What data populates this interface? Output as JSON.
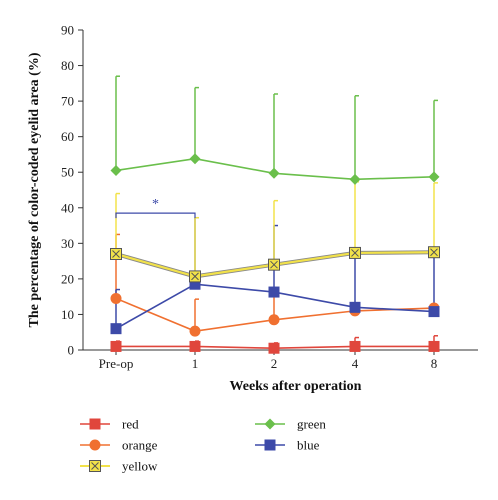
{
  "chart_data": {
    "type": "line",
    "xlabel": "Weeks after operation",
    "ylabel": "The percentage of color-coded eyelid area (%)",
    "categories": [
      "Pre-op",
      "1",
      "2",
      "4",
      "8"
    ],
    "ylim": [
      0,
      90
    ],
    "yticks": [
      0,
      10,
      20,
      30,
      40,
      50,
      60,
      70,
      80,
      90
    ],
    "grid": false,
    "legend_position": "bottom",
    "series": [
      {
        "name": "red",
        "color": "#e0463c",
        "marker": "square",
        "values": [
          1,
          1,
          0.5,
          1,
          1
        ],
        "error": [
          1.5,
          1.5,
          1.5,
          2.5,
          3
        ]
      },
      {
        "name": "orange",
        "color": "#f07030",
        "marker": "circle",
        "values": [
          14.5,
          5.3,
          8.5,
          11,
          11.8
        ],
        "error": [
          18,
          9,
          8,
          0,
          0
        ]
      },
      {
        "name": "yellow",
        "color": "#f2e24a",
        "marker": "square-x",
        "values": [
          27,
          20.7,
          24,
          27.3,
          27.5
        ],
        "error": [
          17,
          16.5,
          18,
          20,
          19.5
        ]
      },
      {
        "name": "green",
        "color": "#6abf4b",
        "marker": "diamond",
        "values": [
          50.5,
          53.8,
          49.7,
          48,
          48.7
        ],
        "error": [
          26.5,
          20,
          22.3,
          23.5,
          21.5
        ]
      },
      {
        "name": "blue",
        "color": "#3d4aa8",
        "marker": "square",
        "values": [
          6,
          18.5,
          16.3,
          12,
          10.8
        ],
        "error": [
          11,
          18.7,
          18.7,
          15,
          16
        ]
      }
    ],
    "annotation": {
      "text": "*",
      "from": "Pre-op",
      "to": "1",
      "y": 38.5,
      "color": "#3d4aa8"
    }
  }
}
